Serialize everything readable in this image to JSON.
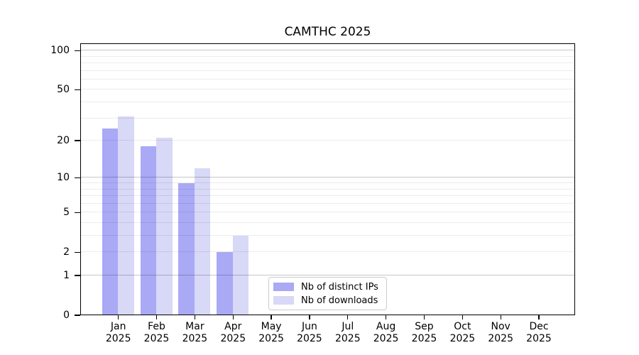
{
  "chart_data": {
    "type": "bar",
    "title": "CAMTHC 2025",
    "x": {
      "months": [
        "Jan",
        "Feb",
        "Mar",
        "Apr",
        "May",
        "Jun",
        "Jul",
        "Aug",
        "Sep",
        "Oct",
        "Nov",
        "Dec"
      ],
      "year": "2025"
    },
    "y_axis": {
      "scale": "log1p",
      "ticks": [
        0,
        1,
        2,
        5,
        10,
        20,
        50,
        100
      ],
      "major_gridlines": [
        1,
        10,
        100
      ],
      "minor_gridlines": [
        2,
        3,
        4,
        5,
        6,
        7,
        8,
        9,
        20,
        30,
        40,
        50,
        60,
        70,
        80,
        90
      ],
      "range": [
        0,
        114
      ]
    },
    "series": [
      {
        "name": "Nb of distinct IPs",
        "color": "#a9a9f5",
        "values": [
          25,
          18,
          9,
          2,
          0,
          0,
          0,
          0,
          0,
          0,
          0,
          0
        ]
      },
      {
        "name": "Nb of downloads",
        "color": "#d8d8f7",
        "values": [
          31,
          21,
          12,
          3,
          0,
          0,
          0,
          0,
          0,
          0,
          0,
          0
        ]
      }
    ],
    "legend": {
      "position": "bottom-center",
      "entries": [
        "Nb of distinct IPs",
        "Nb of downloads"
      ]
    },
    "grid": true
  }
}
